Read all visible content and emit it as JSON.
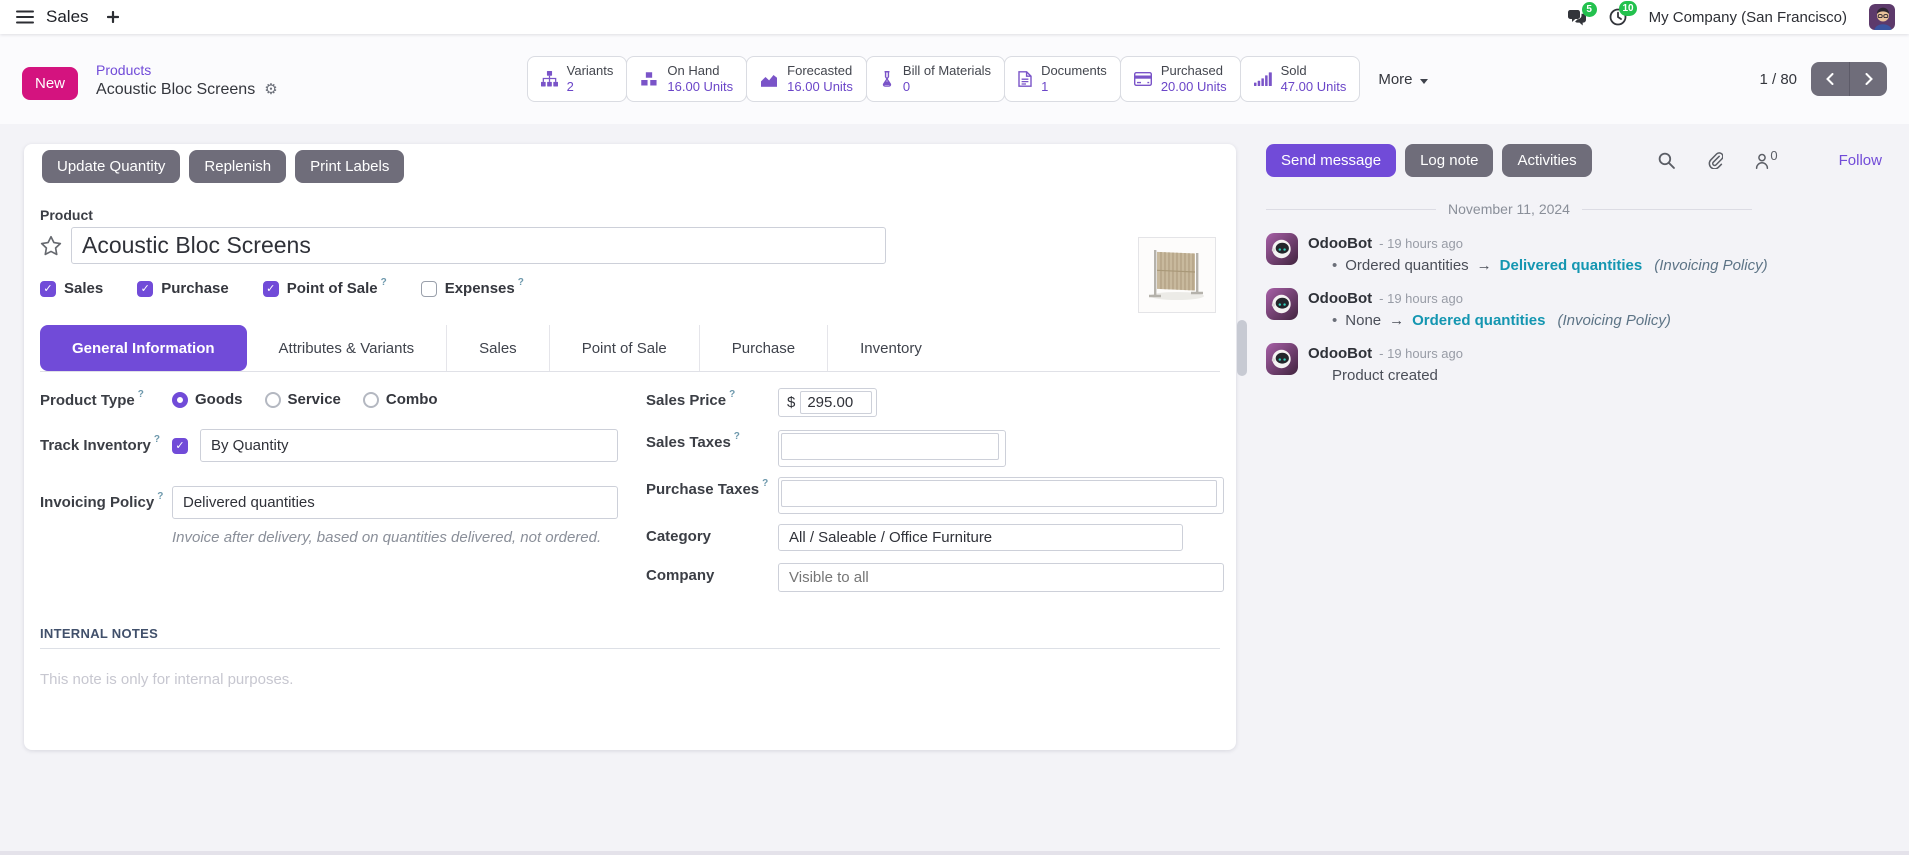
{
  "colors": {
    "accent": "#714BD8",
    "magenta": "#D4137F",
    "btn-gray": "#6F6D7A",
    "teal": "#1496B1",
    "green": "#23C14E"
  },
  "ui": {
    "help_marker": "?",
    "bullet": "•",
    "arrow": "→"
  },
  "navbar": {
    "app_name": "Sales",
    "messages_badge": "5",
    "activities_badge": "10",
    "company": "My Company (San Francisco)"
  },
  "control_panel": {
    "new_label": "New",
    "breadcrumb_parent": "Products",
    "breadcrumb_current": "Acoustic Bloc Screens",
    "stat_buttons": [
      {
        "icon": "sitemap-icon",
        "label": "Variants",
        "value": "2"
      },
      {
        "icon": "cubes-icon",
        "label": "On Hand",
        "value": "16.00 Units"
      },
      {
        "icon": "area-chart-icon",
        "label": "Forecasted",
        "value": "16.00 Units"
      },
      {
        "icon": "flask-icon",
        "label": "Bill of Materials",
        "value": "0"
      },
      {
        "icon": "document-icon",
        "label": "Documents",
        "value": "1"
      },
      {
        "icon": "credit-card-icon",
        "label": "Purchased",
        "value": "20.00 Units"
      },
      {
        "icon": "signal-icon",
        "label": "Sold",
        "value": "47.00 Units"
      }
    ],
    "more_label": "More",
    "pager": "1 / 80"
  },
  "form": {
    "action_buttons": [
      "Update Quantity",
      "Replenish",
      "Print Labels"
    ],
    "product_label": "Product",
    "product_name": "Acoustic Bloc Screens",
    "checkboxes": [
      {
        "label": "Sales",
        "checked": true,
        "help": false
      },
      {
        "label": "Purchase",
        "checked": true,
        "help": false
      },
      {
        "label": "Point of Sale",
        "checked": true,
        "help": true
      },
      {
        "label": "Expenses",
        "checked": false,
        "help": true
      }
    ],
    "tabs": [
      "General Information",
      "Attributes & Variants",
      "Sales",
      "Point of Sale",
      "Purchase",
      "Inventory"
    ],
    "active_tab": "General Information",
    "fields": {
      "product_type_label": "Product Type",
      "product_type_options": [
        "Goods",
        "Service",
        "Combo"
      ],
      "product_type_selected": "Goods",
      "track_inventory_label": "Track Inventory",
      "track_inventory_value": "By Quantity",
      "invoicing_policy_label": "Invoicing Policy",
      "invoicing_policy_value": "Delivered quantities",
      "invoicing_policy_note": "Invoice after delivery, based on quantities delivered, not ordered.",
      "sales_price_label": "Sales Price",
      "currency_symbol": "$",
      "sales_price_value": "295.00",
      "sales_taxes_label": "Sales Taxes",
      "purchase_taxes_label": "Purchase Taxes",
      "category_label": "Category",
      "category_value": "All / Saleable / Office Furniture",
      "company_label": "Company",
      "company_placeholder": "Visible to all"
    },
    "internal_notes_title": "INTERNAL NOTES",
    "internal_notes_placeholder": "This note is only for internal purposes."
  },
  "chatter": {
    "buttons": [
      "Send message",
      "Log note",
      "Activities"
    ],
    "followers_count": "0",
    "follow_label": "Follow",
    "date_divider": "November 11, 2024",
    "messages": [
      {
        "author": "OdooBot",
        "time": "- 19 hours ago",
        "tracking": true,
        "old_value": "Ordered quantities",
        "new_value": "Delivered quantities",
        "field": "(Invoicing Policy)"
      },
      {
        "author": "OdooBot",
        "time": "- 19 hours ago",
        "tracking": true,
        "old_value": "None",
        "new_value": "Ordered quantities",
        "field": "(Invoicing Policy)"
      },
      {
        "author": "OdooBot",
        "time": "- 19 hours ago",
        "tracking": false,
        "text": "Product created"
      }
    ]
  }
}
